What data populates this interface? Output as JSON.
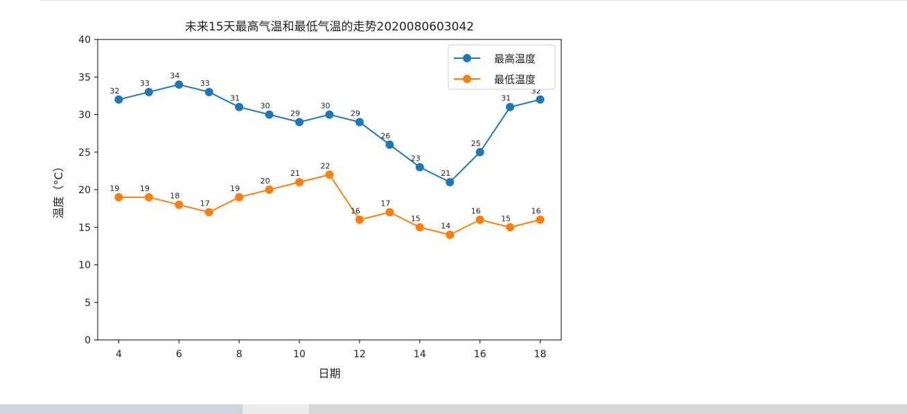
{
  "chart_data": {
    "type": "line",
    "title": "未来15天最高气温和最低气温的走势2020080603042",
    "xlabel": "日期",
    "ylabel": "温度（°C）",
    "xlim": [
      3.3,
      18.7
    ],
    "ylim": [
      0,
      40
    ],
    "xticks": [
      4,
      6,
      8,
      10,
      12,
      14,
      16,
      18
    ],
    "yticks": [
      0,
      5,
      10,
      15,
      20,
      25,
      30,
      35,
      40
    ],
    "grid": false,
    "legend_position": "upper right",
    "x": [
      4,
      5,
      6,
      7,
      8,
      9,
      10,
      11,
      12,
      13,
      14,
      15,
      16,
      17,
      18
    ],
    "series": [
      {
        "name": "最高温度",
        "color": "#1f77b4",
        "marker": "circle",
        "values": [
          32,
          33,
          34,
          33,
          31,
          30,
          29,
          30,
          29,
          26,
          23,
          21,
          25,
          31,
          32
        ]
      },
      {
        "name": "最低温度",
        "color": "#ff7f0e",
        "marker": "circle",
        "values": [
          19,
          19,
          18,
          17,
          19,
          20,
          21,
          22,
          16,
          17,
          15,
          14,
          16,
          15,
          16
        ]
      }
    ]
  }
}
